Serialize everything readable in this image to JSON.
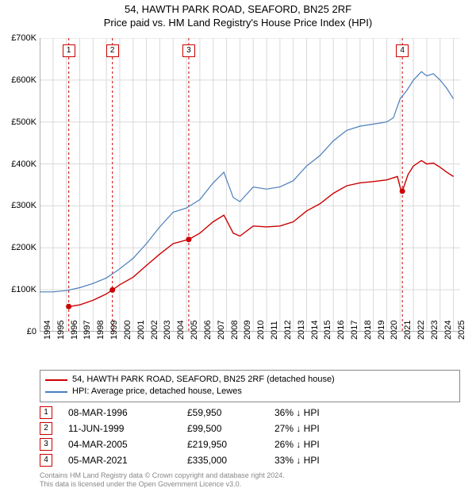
{
  "title_line1": "54, HAWTH PARK ROAD, SEAFORD, BN25 2RF",
  "title_line2": "Price paid vs. HM Land Registry's House Price Index (HPI)",
  "chart": {
    "type": "line",
    "plot_bg": "#ffffff",
    "grid_color": "#d9d9d9",
    "axis_color": "#666666",
    "x_min": 1994,
    "x_max": 2025.5,
    "x_ticks": [
      1994,
      1995,
      1996,
      1997,
      1998,
      1999,
      2000,
      2001,
      2002,
      2003,
      2004,
      2005,
      2006,
      2007,
      2008,
      2009,
      2010,
      2011,
      2012,
      2013,
      2014,
      2015,
      2016,
      2017,
      2018,
      2019,
      2020,
      2021,
      2022,
      2023,
      2024,
      2025
    ],
    "y_min": 0,
    "y_max": 700000,
    "y_ticks": [
      0,
      100000,
      200000,
      300000,
      400000,
      500000,
      600000,
      700000
    ],
    "y_tick_labels": [
      "£0",
      "£100K",
      "£200K",
      "£300K",
      "£400K",
      "£500K",
      "£600K",
      "£700K"
    ],
    "series": [
      {
        "name": "HPI: Average price, detached house, Lewes",
        "color": "#4a7ebb",
        "width": 1.2,
        "points": [
          [
            1994,
            95000
          ],
          [
            1995,
            95000
          ],
          [
            1996,
            98000
          ],
          [
            1997,
            105000
          ],
          [
            1998,
            115000
          ],
          [
            1999,
            128000
          ],
          [
            2000,
            150000
          ],
          [
            2001,
            175000
          ],
          [
            2002,
            210000
          ],
          [
            2003,
            250000
          ],
          [
            2004,
            285000
          ],
          [
            2005,
            295000
          ],
          [
            2006,
            315000
          ],
          [
            2007,
            355000
          ],
          [
            2007.8,
            380000
          ],
          [
            2008.5,
            320000
          ],
          [
            2009,
            310000
          ],
          [
            2010,
            345000
          ],
          [
            2011,
            340000
          ],
          [
            2012,
            345000
          ],
          [
            2013,
            360000
          ],
          [
            2014,
            395000
          ],
          [
            2015,
            420000
          ],
          [
            2016,
            455000
          ],
          [
            2017,
            480000
          ],
          [
            2018,
            490000
          ],
          [
            2019,
            495000
          ],
          [
            2020,
            500000
          ],
          [
            2020.5,
            510000
          ],
          [
            2021,
            555000
          ],
          [
            2021.5,
            575000
          ],
          [
            2022,
            600000
          ],
          [
            2022.6,
            620000
          ],
          [
            2023,
            610000
          ],
          [
            2023.5,
            615000
          ],
          [
            2024,
            600000
          ],
          [
            2024.5,
            580000
          ],
          [
            2025,
            555000
          ]
        ]
      },
      {
        "name": "54, HAWTH PARK ROAD, SEAFORD, BN25 2RF (detached house)",
        "color": "#cc0000",
        "width": 1.4,
        "points": [
          [
            1996.2,
            59950
          ],
          [
            1997,
            64000
          ],
          [
            1998,
            75000
          ],
          [
            1999,
            90000
          ],
          [
            1999.45,
            99500
          ],
          [
            2000,
            112000
          ],
          [
            2001,
            130000
          ],
          [
            2002,
            158000
          ],
          [
            2003,
            185000
          ],
          [
            2004,
            210000
          ],
          [
            2005.17,
            219950
          ],
          [
            2006,
            235000
          ],
          [
            2007,
            262000
          ],
          [
            2007.8,
            278000
          ],
          [
            2008.5,
            235000
          ],
          [
            2009,
            228000
          ],
          [
            2010,
            252000
          ],
          [
            2011,
            250000
          ],
          [
            2012,
            252000
          ],
          [
            2013,
            262000
          ],
          [
            2014,
            288000
          ],
          [
            2015,
            305000
          ],
          [
            2016,
            330000
          ],
          [
            2017,
            348000
          ],
          [
            2018,
            355000
          ],
          [
            2019,
            358000
          ],
          [
            2020,
            362000
          ],
          [
            2020.8,
            370000
          ],
          [
            2021.1,
            333000
          ],
          [
            2021.17,
            335000
          ],
          [
            2021.6,
            375000
          ],
          [
            2022,
            395000
          ],
          [
            2022.6,
            408000
          ],
          [
            2023,
            400000
          ],
          [
            2023.5,
            402000
          ],
          [
            2024,
            392000
          ],
          [
            2024.5,
            380000
          ],
          [
            2025,
            370000
          ]
        ]
      }
    ],
    "transaction_markers": [
      {
        "n": "1",
        "year": 1996.18,
        "price": 59950
      },
      {
        "n": "2",
        "year": 1999.45,
        "price": 99500
      },
      {
        "n": "3",
        "year": 2005.17,
        "price": 219950
      },
      {
        "n": "4",
        "year": 2021.17,
        "price": 335000
      }
    ],
    "marker_line_color": "#cc0000",
    "marker_dot_color": "#cc0000"
  },
  "legend": [
    {
      "color": "#cc0000",
      "label": "54, HAWTH PARK ROAD, SEAFORD, BN25 2RF (detached house)"
    },
    {
      "color": "#4a7ebb",
      "label": "HPI: Average price, detached house, Lewes"
    }
  ],
  "transactions": [
    {
      "n": "1",
      "date": "08-MAR-1996",
      "price": "£59,950",
      "delta": "36% ↓ HPI"
    },
    {
      "n": "2",
      "date": "11-JUN-1999",
      "price": "£99,500",
      "delta": "27% ↓ HPI"
    },
    {
      "n": "3",
      "date": "04-MAR-2005",
      "price": "£219,950",
      "delta": "26% ↓ HPI"
    },
    {
      "n": "4",
      "date": "05-MAR-2021",
      "price": "£335,000",
      "delta": "33% ↓ HPI"
    }
  ],
  "footer_line1": "Contains HM Land Registry data © Crown copyright and database right 2024.",
  "footer_line2": "This data is licensed under the Open Government Licence v3.0."
}
